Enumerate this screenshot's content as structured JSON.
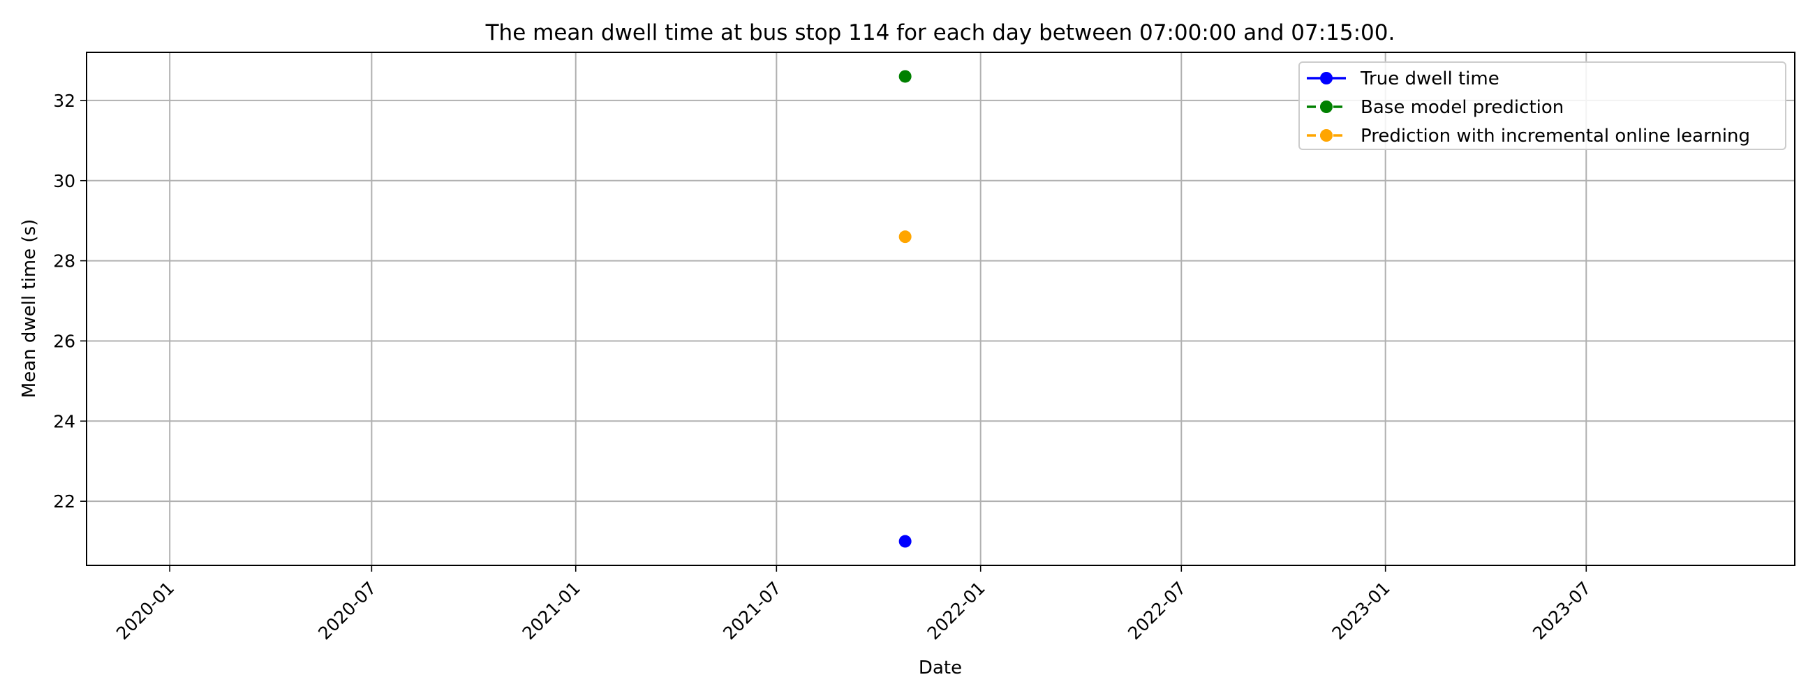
{
  "chart_data": {
    "type": "line",
    "title": "The mean dwell time at bus stop 114 for each day between 07:00:00 and 07:15:00.",
    "xlabel": "Date",
    "ylabel": "Mean dwell time (s)",
    "x_type": "date",
    "xlim": [
      "2019-10-18",
      "2024-01-05"
    ],
    "ylim": [
      20.4,
      33.2
    ],
    "x_ticks": [
      "2020-01",
      "2020-07",
      "2021-01",
      "2021-07",
      "2022-01",
      "2022-07",
      "2023-01",
      "2023-07"
    ],
    "y_ticks": [
      22,
      24,
      26,
      28,
      30,
      32
    ],
    "grid": true,
    "legend_position": "top-right",
    "series": [
      {
        "name": "True dwell time",
        "color": "#0000ff",
        "line_style": "solid",
        "marker": "circle",
        "x": [
          "2021-10-25"
        ],
        "y": [
          21.0
        ]
      },
      {
        "name": "Base model prediction",
        "color": "#008000",
        "line_style": "dashed",
        "marker": "circle",
        "x": [
          "2021-10-25"
        ],
        "y": [
          32.6
        ]
      },
      {
        "name": "Prediction with incremental online learning",
        "color": "#ffa500",
        "line_style": "dashed",
        "marker": "circle",
        "x": [
          "2021-10-25"
        ],
        "y": [
          28.6
        ]
      }
    ]
  }
}
